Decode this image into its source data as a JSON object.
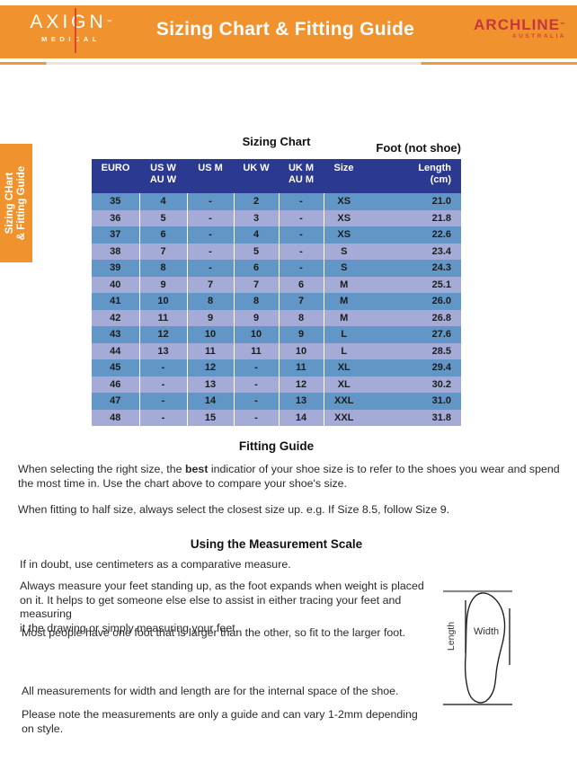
{
  "banner": {
    "logo_left": {
      "name": "AXIGN",
      "tm": "™",
      "sub": "MEDICAL"
    },
    "title": "Sizing Chart & Fitting Guide",
    "logo_right": {
      "name": "ARCHLINE",
      "tm": "™",
      "sub": "AUSTRALIA"
    }
  },
  "side_tab": {
    "line1": "Sizing CHart",
    "line2": "& Fitting Guide"
  },
  "sizing_chart": {
    "title": "Sizing Chart",
    "note": "Foot (not shoe)",
    "columns": [
      {
        "top": "EURO",
        "bottom": ""
      },
      {
        "top": "US W",
        "bottom": "AU W"
      },
      {
        "top": "US M",
        "bottom": ""
      },
      {
        "top": "UK W",
        "bottom": ""
      },
      {
        "top": "UK M",
        "bottom": "AU M"
      },
      {
        "top": "Size",
        "bottom": ""
      },
      {
        "top": "Length",
        "bottom": "(cm)"
      }
    ],
    "rows": [
      [
        "35",
        "4",
        "-",
        "2",
        "-",
        "XS",
        "21.0"
      ],
      [
        "36",
        "5",
        "-",
        "3",
        "-",
        "XS",
        "21.8"
      ],
      [
        "37",
        "6",
        "-",
        "4",
        "-",
        "XS",
        "22.6"
      ],
      [
        "38",
        "7",
        "-",
        "5",
        "-",
        "S",
        "23.4"
      ],
      [
        "39",
        "8",
        "-",
        "6",
        "-",
        "S",
        "24.3"
      ],
      [
        "40",
        "9",
        "7",
        "7",
        "6",
        "M",
        "25.1"
      ],
      [
        "41",
        "10",
        "8",
        "8",
        "7",
        "M",
        "26.0"
      ],
      [
        "42",
        "11",
        "9",
        "9",
        "8",
        "M",
        "26.8"
      ],
      [
        "43",
        "12",
        "10",
        "10",
        "9",
        "L",
        "27.6"
      ],
      [
        "44",
        "13",
        "11",
        "11",
        "10",
        "L",
        "28.5"
      ],
      [
        "45",
        "-",
        "12",
        "-",
        "11",
        "XL",
        "29.4"
      ],
      [
        "46",
        "-",
        "13",
        "-",
        "12",
        "XL",
        "30.2"
      ],
      [
        "47",
        "-",
        "14",
        "-",
        "13",
        "XXL",
        "31.0"
      ],
      [
        "48",
        "-",
        "15",
        "-",
        "14",
        "XXL",
        "31.8"
      ]
    ]
  },
  "fitting_guide": {
    "heading": "Fitting Guide",
    "p1_seg1": "When selecting the right size, the ",
    "p1_bold": "best",
    "p1_seg2": " indicatior of your shoe size is to refer to the shoes you wear and spend\nthe most time in. Use the chart above to compare your shoe's size.",
    "p2": "When fitting to half size, always select the closest size up. e.g. If Size 8.5, follow Size 9."
  },
  "measurement": {
    "heading": "Using the Measurement Scale",
    "p3": "If in doubt, use centimeters as a comparative measure.",
    "p4": "Always measure your feet standing up, as the foot expands when weight is placed\non it. It helps to get someone else else to assist in either tracing your feet and measuring\nit the drawing or simply measuring your feet.",
    "p5": "Most people have one foot that is larger than the other, so fit to the larger foot.",
    "p6": "All measurements for width and length are for the internal space of the shoe.",
    "p7": "Please note the measurements are only a guide and can vary 1-2mm depending\non style."
  },
  "diagram": {
    "length_label": "Length",
    "width_label": "Width"
  },
  "colors": {
    "banner_orange": "#F0932F",
    "table_header_navy": "#2B3990",
    "row_blue": "#6296C6",
    "row_lavender": "#A4ABD7",
    "logo_red_line": "#E34234",
    "archline_red": "#C5373C"
  }
}
